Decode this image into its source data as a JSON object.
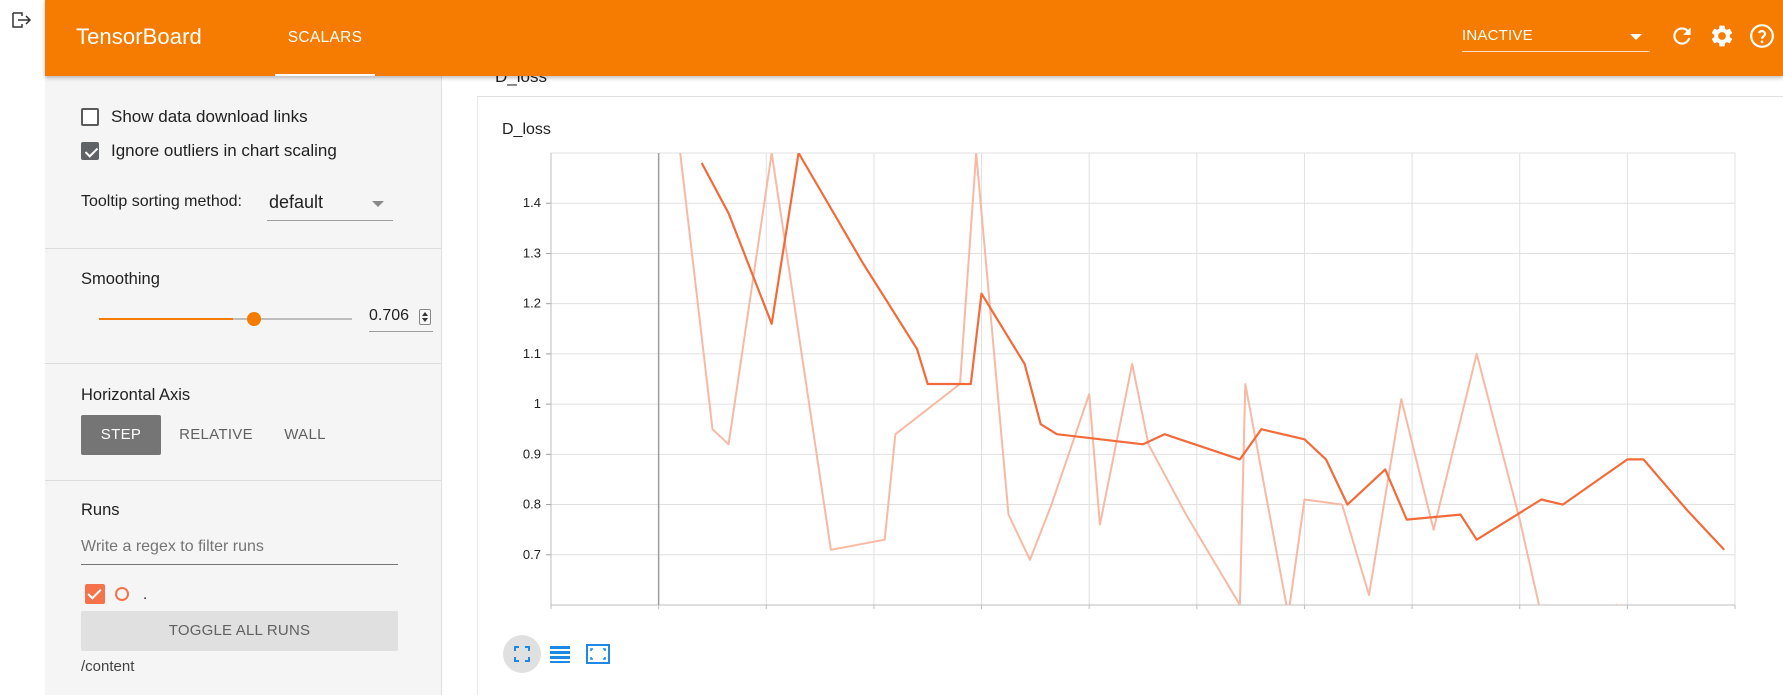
{
  "header": {
    "brand": "TensorBoard",
    "tab": "SCALARS",
    "status": "INACTIVE",
    "color": "#f57c00",
    "icons": [
      "refresh-icon",
      "settings-icon",
      "help-icon"
    ]
  },
  "left_strip": {
    "icon": "exit-icon"
  },
  "sidebar": {
    "show_download_label": "Show data download links",
    "show_download_checked": false,
    "ignore_outliers_label": "Ignore outliers in chart scaling",
    "ignore_outliers_checked": true,
    "tooltip_label": "Tooltip sorting method:",
    "tooltip_value": "default",
    "smoothing_title": "Smoothing",
    "smoothing_value": "0.706",
    "smoothing_fraction": 0.706,
    "axis_title": "Horizontal Axis",
    "axis_options": [
      "STEP",
      "RELATIVE",
      "WALL"
    ],
    "axis_selected": "STEP",
    "runs_title": "Runs",
    "regex_placeholder": "Write a regex to filter runs",
    "run_name": ".",
    "run_checked": true,
    "run_color": "#f5734a",
    "toggle_label": "TOGGLE ALL RUNS",
    "logdir": "/content"
  },
  "main": {
    "card_header": "D_loss",
    "chart_title": "D_loss",
    "buttons": [
      "fit-to-domain-icon",
      "data-table-icon",
      "fullscreen-icon"
    ]
  },
  "chart_data": {
    "type": "line",
    "title": "D_loss",
    "xlabel": "",
    "ylabel": "",
    "y_ticks": [
      "1.4",
      "1.3",
      "1.2",
      "1.1",
      "1",
      "0.9",
      "0.8",
      "0.7"
    ],
    "ylim": [
      0.6,
      1.5
    ],
    "xlim": [
      0,
      11
    ],
    "grid": true,
    "series": [
      {
        "role": "smoothed",
        "color": "#f26b3a",
        "x": [
          1.4,
          1.65,
          2.05,
          2.3,
          2.9,
          3.4,
          3.5,
          3.9,
          4.0,
          4.4,
          4.55,
          4.7,
          5.5,
          5.7,
          6.4,
          6.6,
          7.0,
          7.2,
          7.4,
          7.75,
          7.95,
          8.45,
          8.6,
          9.2,
          9.4,
          10.0,
          10.15,
          10.55,
          10.9
        ],
        "y": [
          1.48,
          1.38,
          1.16,
          1.5,
          1.28,
          1.11,
          1.04,
          1.04,
          1.22,
          1.08,
          0.96,
          0.94,
          0.92,
          0.94,
          0.89,
          0.95,
          0.93,
          0.89,
          0.8,
          0.87,
          0.77,
          0.78,
          0.73,
          0.81,
          0.8,
          0.89,
          0.89,
          0.79,
          0.71
        ]
      },
      {
        "role": "raw",
        "color": "#f7b9a4",
        "x": [
          1.2,
          1.5,
          1.65,
          2.05,
          2.6,
          3.1,
          3.2,
          3.8,
          3.95,
          4.25,
          4.45,
          4.65,
          5.0,
          5.1,
          5.4,
          5.55,
          5.9,
          6.4,
          6.45,
          6.85,
          7.0,
          7.35,
          7.6,
          7.9,
          8.2,
          8.6,
          9.0,
          9.2,
          9.4,
          9.9,
          10.5
        ],
        "y": [
          1.5,
          0.95,
          0.92,
          1.5,
          0.71,
          0.73,
          0.94,
          1.04,
          1.5,
          0.78,
          0.69,
          0.8,
          1.02,
          0.76,
          1.08,
          0.92,
          0.78,
          0.6,
          1.04,
          0.58,
          0.81,
          0.8,
          0.62,
          1.01,
          0.75,
          1.1,
          0.77,
          0.58,
          0.55,
          0.6,
          0.55
        ]
      }
    ]
  }
}
